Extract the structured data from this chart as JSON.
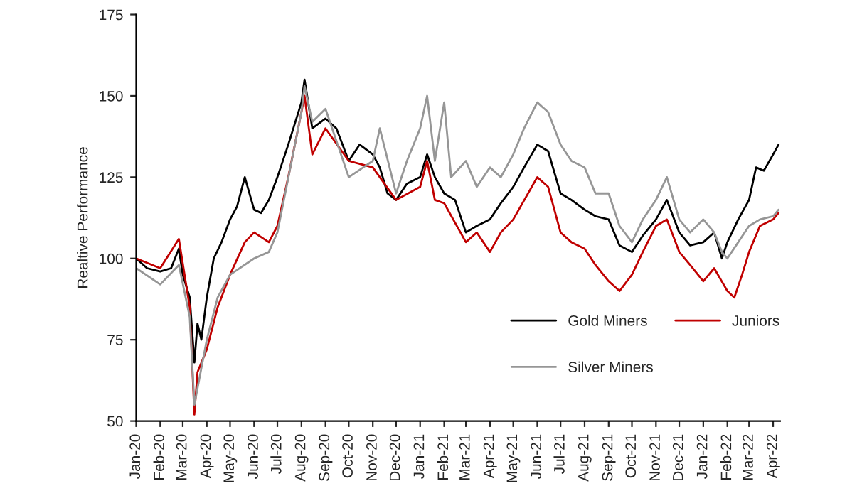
{
  "chart_data": {
    "type": "line",
    "ylabel": "Realtive Performance",
    "ylim": [
      50,
      175
    ],
    "yticks": [
      50,
      75,
      100,
      125,
      150,
      175
    ],
    "xlim": [
      "2020-01-01",
      "2022-04-10"
    ],
    "xticks": [
      {
        "value": "2020-01-01",
        "label": "Jan-20"
      },
      {
        "value": "2020-02-01",
        "label": "Feb-20"
      },
      {
        "value": "2020-03-01",
        "label": "Mar-20"
      },
      {
        "value": "2020-04-01",
        "label": "Apr-20"
      },
      {
        "value": "2020-05-01",
        "label": "May-20"
      },
      {
        "value": "2020-06-01",
        "label": "Jun-20"
      },
      {
        "value": "2020-07-01",
        "label": "Jul-20"
      },
      {
        "value": "2020-08-01",
        "label": "Aug-20"
      },
      {
        "value": "2020-09-01",
        "label": "Sep-20"
      },
      {
        "value": "2020-10-01",
        "label": "Oct-20"
      },
      {
        "value": "2020-11-01",
        "label": "Nov-20"
      },
      {
        "value": "2020-12-01",
        "label": "Dec-20"
      },
      {
        "value": "2021-01-01",
        "label": "Jan-21"
      },
      {
        "value": "2021-02-01",
        "label": "Feb-21"
      },
      {
        "value": "2021-03-01",
        "label": "Mar-21"
      },
      {
        "value": "2021-04-01",
        "label": "Apr-21"
      },
      {
        "value": "2021-05-01",
        "label": "May-21"
      },
      {
        "value": "2021-06-01",
        "label": "Jun-21"
      },
      {
        "value": "2021-07-01",
        "label": "Jul-21"
      },
      {
        "value": "2021-08-01",
        "label": "Aug-21"
      },
      {
        "value": "2021-09-01",
        "label": "Sep-21"
      },
      {
        "value": "2021-10-01",
        "label": "Oct-21"
      },
      {
        "value": "2021-11-01",
        "label": "Nov-21"
      },
      {
        "value": "2021-12-01",
        "label": "Dec-21"
      },
      {
        "value": "2022-01-01",
        "label": "Jan-22"
      },
      {
        "value": "2022-02-01",
        "label": "Feb-22"
      },
      {
        "value": "2022-03-01",
        "label": "Mar-22"
      },
      {
        "value": "2022-04-01",
        "label": "Apr-22"
      }
    ],
    "grid": false,
    "legend": "bottom right",
    "marker": "none",
    "line_style": "solid",
    "series": [
      {
        "name": "Gold Miners",
        "color": "#000000",
        "x": [
          "2020-01-01",
          "2020-01-15",
          "2020-02-01",
          "2020-02-15",
          "2020-02-25",
          "2020-03-01",
          "2020-03-10",
          "2020-03-16",
          "2020-03-20",
          "2020-03-25",
          "2020-04-01",
          "2020-04-10",
          "2020-04-20",
          "2020-05-01",
          "2020-05-10",
          "2020-05-20",
          "2020-06-01",
          "2020-06-10",
          "2020-06-20",
          "2020-07-01",
          "2020-07-15",
          "2020-08-01",
          "2020-08-05",
          "2020-08-15",
          "2020-09-01",
          "2020-09-15",
          "2020-10-01",
          "2020-10-15",
          "2020-11-01",
          "2020-11-10",
          "2020-11-20",
          "2020-12-01",
          "2020-12-15",
          "2021-01-01",
          "2021-01-10",
          "2021-01-20",
          "2021-02-01",
          "2021-02-15",
          "2021-03-01",
          "2021-03-15",
          "2021-04-01",
          "2021-04-15",
          "2021-05-01",
          "2021-05-15",
          "2021-06-01",
          "2021-06-15",
          "2021-07-01",
          "2021-07-15",
          "2021-08-01",
          "2021-08-15",
          "2021-09-01",
          "2021-09-15",
          "2021-10-01",
          "2021-10-15",
          "2021-11-01",
          "2021-11-15",
          "2021-12-01",
          "2021-12-15",
          "2022-01-01",
          "2022-01-15",
          "2022-01-25",
          "2022-02-01",
          "2022-02-15",
          "2022-03-01",
          "2022-03-10",
          "2022-03-20",
          "2022-04-01",
          "2022-04-08"
        ],
        "values": [
          100,
          97,
          96,
          97,
          103,
          95,
          88,
          68,
          80,
          75,
          88,
          100,
          105,
          112,
          116,
          125,
          115,
          114,
          118,
          125,
          135,
          148,
          155,
          140,
          143,
          140,
          130,
          135,
          132,
          128,
          120,
          118,
          123,
          125,
          132,
          125,
          120,
          118,
          108,
          110,
          112,
          117,
          122,
          128,
          135,
          133,
          120,
          118,
          115,
          113,
          112,
          104,
          102,
          107,
          112,
          118,
          108,
          104,
          105,
          108,
          100,
          105,
          112,
          118,
          128,
          127,
          132,
          135
        ]
      },
      {
        "name": "Juniors",
        "color": "#c00000",
        "x": [
          "2020-01-01",
          "2020-02-01",
          "2020-02-25",
          "2020-03-10",
          "2020-03-16",
          "2020-03-20",
          "2020-04-01",
          "2020-04-15",
          "2020-05-01",
          "2020-05-20",
          "2020-06-01",
          "2020-06-20",
          "2020-07-01",
          "2020-07-15",
          "2020-08-01",
          "2020-08-05",
          "2020-08-15",
          "2020-09-01",
          "2020-10-01",
          "2020-11-01",
          "2020-12-01",
          "2021-01-01",
          "2021-01-10",
          "2021-01-20",
          "2021-02-01",
          "2021-03-01",
          "2021-03-15",
          "2021-04-01",
          "2021-04-15",
          "2021-05-01",
          "2021-06-01",
          "2021-06-15",
          "2021-07-01",
          "2021-07-15",
          "2021-08-01",
          "2021-08-15",
          "2021-09-01",
          "2021-09-15",
          "2021-10-01",
          "2021-10-15",
          "2021-11-01",
          "2021-11-15",
          "2021-12-01",
          "2021-12-15",
          "2022-01-01",
          "2022-01-15",
          "2022-02-01",
          "2022-02-10",
          "2022-02-20",
          "2022-03-01",
          "2022-03-15",
          "2022-04-01",
          "2022-04-08"
        ],
        "values": [
          100,
          97,
          106,
          85,
          52,
          65,
          72,
          85,
          95,
          105,
          108,
          105,
          110,
          125,
          145,
          150,
          132,
          140,
          130,
          128,
          118,
          122,
          130,
          118,
          117,
          105,
          108,
          102,
          108,
          112,
          125,
          122,
          108,
          105,
          103,
          98,
          93,
          90,
          95,
          102,
          110,
          112,
          102,
          98,
          93,
          97,
          90,
          88,
          95,
          102,
          110,
          112,
          114
        ]
      },
      {
        "name": "Silver Miners",
        "color": "#969696",
        "x": [
          "2020-01-01",
          "2020-02-01",
          "2020-02-25",
          "2020-03-10",
          "2020-03-16",
          "2020-04-01",
          "2020-04-15",
          "2020-05-01",
          "2020-06-01",
          "2020-06-20",
          "2020-07-01",
          "2020-08-01",
          "2020-08-05",
          "2020-08-15",
          "2020-09-01",
          "2020-10-01",
          "2020-11-01",
          "2020-11-10",
          "2020-12-01",
          "2020-12-15",
          "2021-01-01",
          "2021-01-10",
          "2021-01-20",
          "2021-02-01",
          "2021-02-10",
          "2021-03-01",
          "2021-03-15",
          "2021-04-01",
          "2021-04-15",
          "2021-05-01",
          "2021-05-15",
          "2021-06-01",
          "2021-06-15",
          "2021-07-01",
          "2021-07-15",
          "2021-08-01",
          "2021-08-15",
          "2021-09-01",
          "2021-09-15",
          "2021-10-01",
          "2021-10-15",
          "2021-11-01",
          "2021-11-15",
          "2021-12-01",
          "2021-12-15",
          "2022-01-01",
          "2022-01-15",
          "2022-01-25",
          "2022-02-01",
          "2022-02-15",
          "2022-03-01",
          "2022-03-15",
          "2022-04-01",
          "2022-04-08"
        ],
        "values": [
          97,
          92,
          98,
          82,
          55,
          75,
          88,
          95,
          100,
          102,
          108,
          145,
          153,
          142,
          146,
          125,
          130,
          140,
          120,
          130,
          140,
          150,
          130,
          148,
          125,
          130,
          122,
          128,
          125,
          132,
          140,
          148,
          145,
          135,
          130,
          128,
          120,
          120,
          110,
          105,
          112,
          118,
          125,
          112,
          108,
          112,
          108,
          102,
          100,
          105,
          110,
          112,
          113,
          115
        ]
      }
    ]
  }
}
